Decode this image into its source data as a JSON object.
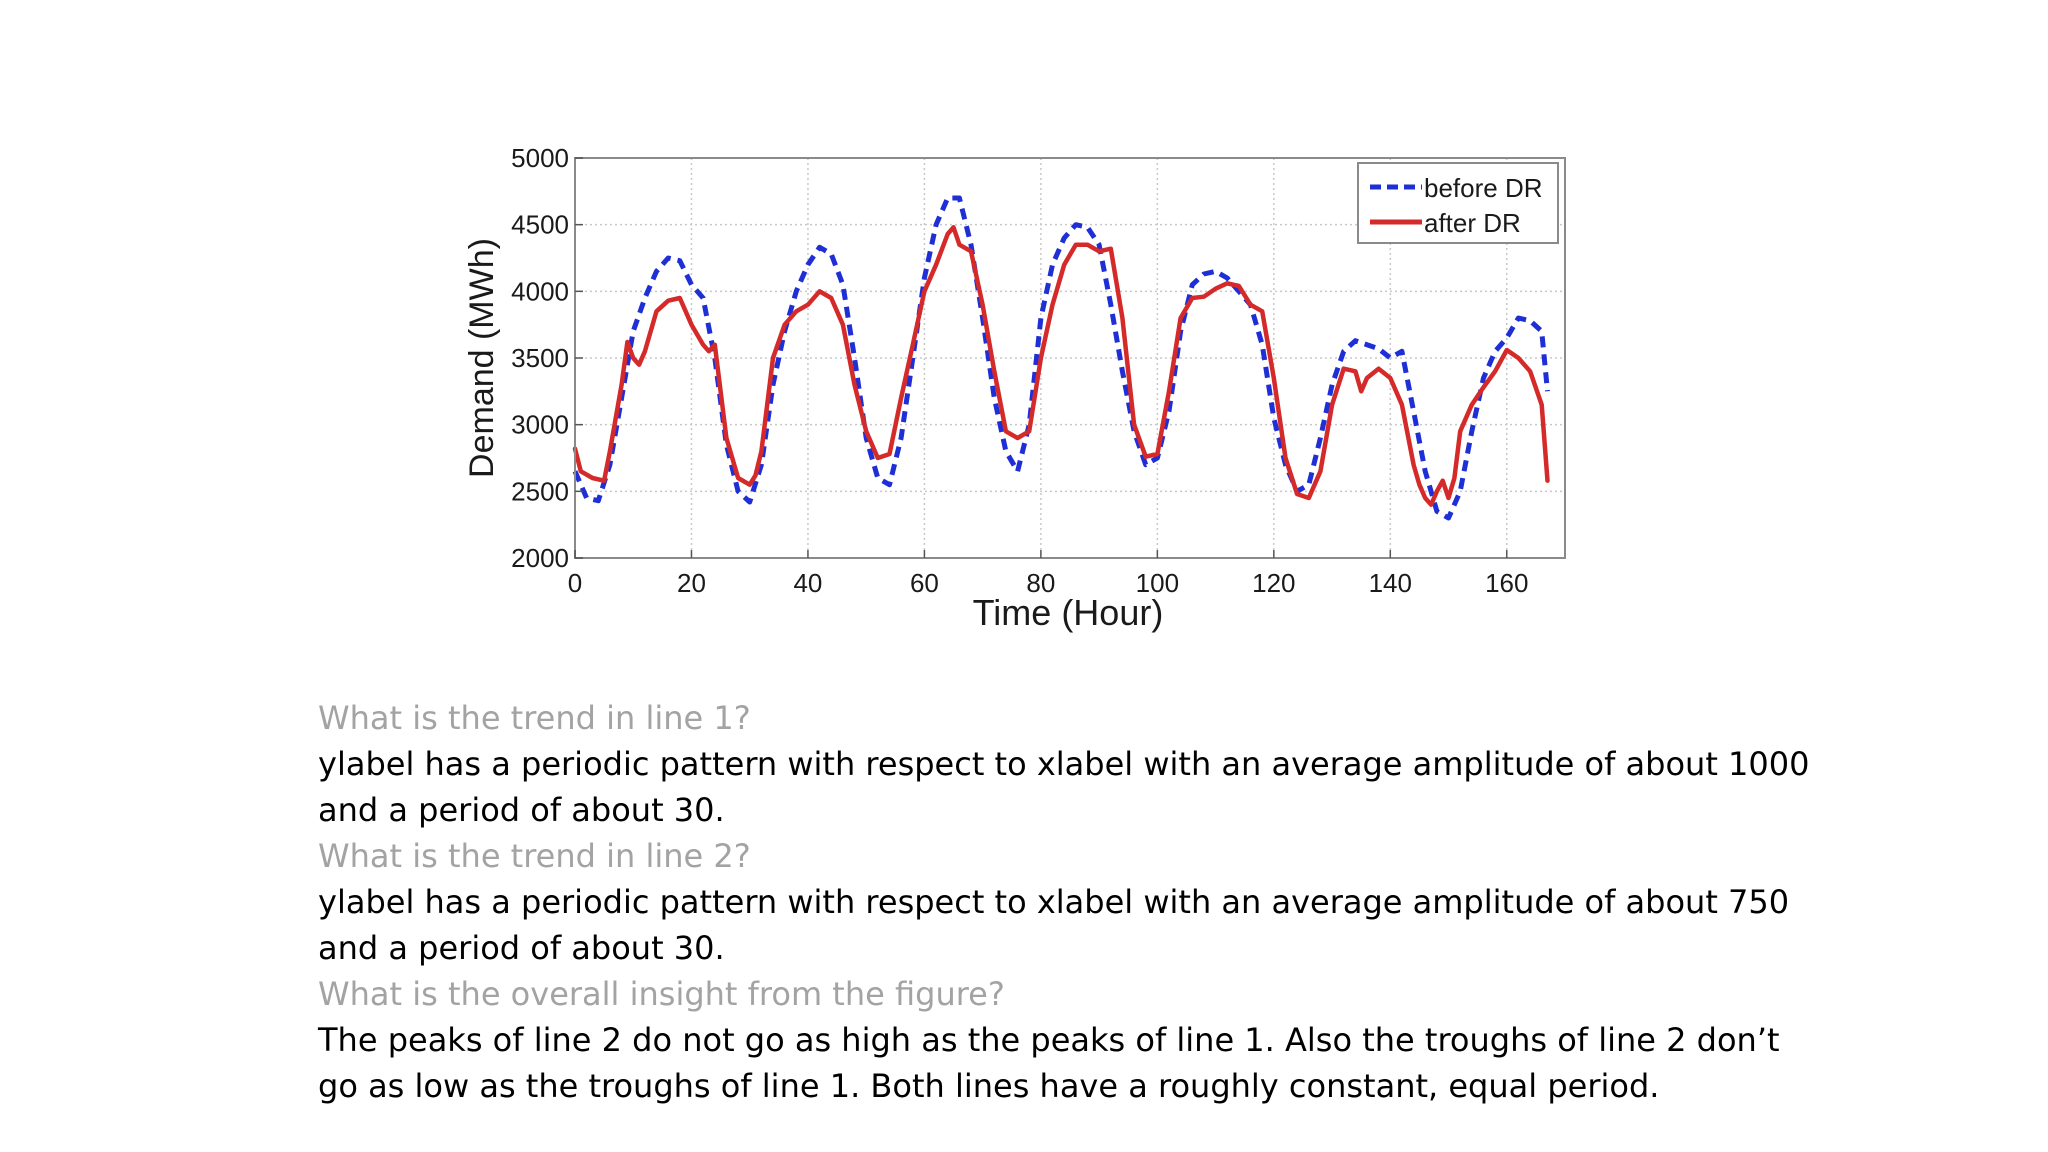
{
  "chart_data": {
    "type": "line",
    "title": "",
    "xlabel": "Time (Hour)",
    "ylabel": "Demand (MWh)",
    "xlim": [
      0,
      170
    ],
    "ylim": [
      2000,
      5000
    ],
    "xticks": [
      0,
      20,
      40,
      60,
      80,
      100,
      120,
      140,
      160
    ],
    "yticks": [
      2000,
      2500,
      3000,
      3500,
      4000,
      4500,
      5000
    ],
    "grid": true,
    "legend_position": "top-right",
    "series": [
      {
        "name": "before DR",
        "color": "#1f2fd6",
        "style": "dashed",
        "x": [
          0,
          2,
          4,
          6,
          8,
          10,
          12,
          14,
          16,
          18,
          20,
          22,
          24,
          26,
          28,
          30,
          32,
          34,
          36,
          38,
          40,
          42,
          44,
          46,
          48,
          50,
          52,
          54,
          56,
          58,
          60,
          62,
          64,
          66,
          68,
          70,
          72,
          74,
          76,
          78,
          80,
          82,
          84,
          86,
          88,
          90,
          92,
          94,
          96,
          98,
          100,
          102,
          104,
          106,
          108,
          110,
          112,
          114,
          116,
          118,
          120,
          122,
          124,
          126,
          128,
          130,
          132,
          134,
          136,
          138,
          140,
          142,
          144,
          146,
          148,
          150,
          152,
          154,
          156,
          158,
          160,
          162,
          164,
          166,
          167
        ],
        "values": [
          2650,
          2450,
          2430,
          2700,
          3200,
          3700,
          3950,
          4150,
          4250,
          4230,
          4050,
          3950,
          3500,
          2850,
          2500,
          2420,
          2700,
          3300,
          3700,
          4000,
          4200,
          4330,
          4280,
          4050,
          3500,
          2900,
          2600,
          2550,
          2900,
          3500,
          4100,
          4500,
          4700,
          4700,
          4350,
          3800,
          3200,
          2800,
          2650,
          3000,
          3800,
          4200,
          4400,
          4500,
          4480,
          4350,
          3900,
          3400,
          2950,
          2700,
          2750,
          3100,
          3700,
          4050,
          4130,
          4150,
          4100,
          4000,
          3900,
          3600,
          3050,
          2700,
          2500,
          2550,
          2900,
          3300,
          3550,
          3630,
          3600,
          3570,
          3500,
          3550,
          3100,
          2650,
          2350,
          2300,
          2500,
          2950,
          3350,
          3550,
          3650,
          3800,
          3780,
          3700,
          3250
        ]
      },
      {
        "name": "after DR",
        "color": "#d42a2a",
        "style": "solid",
        "x": [
          0,
          1,
          3,
          5,
          6,
          8,
          9,
          10,
          11,
          12,
          14,
          16,
          18,
          20,
          22,
          23,
          24,
          26,
          28,
          30,
          31,
          32,
          34,
          36,
          38,
          40,
          42,
          44,
          46,
          48,
          50,
          52,
          54,
          56,
          58,
          60,
          62,
          64,
          65,
          66,
          68,
          70,
          72,
          74,
          76,
          78,
          80,
          82,
          84,
          86,
          88,
          90,
          92,
          94,
          96,
          98,
          100,
          102,
          104,
          106,
          108,
          110,
          112,
          114,
          116,
          118,
          120,
          122,
          124,
          126,
          128,
          130,
          132,
          134,
          135,
          136,
          138,
          140,
          142,
          144,
          145,
          146,
          147,
          148,
          149,
          150,
          151,
          152,
          154,
          156,
          158,
          160,
          162,
          164,
          166,
          167
        ],
        "values": [
          2820,
          2650,
          2600,
          2580,
          2800,
          3300,
          3620,
          3500,
          3450,
          3550,
          3850,
          3930,
          3950,
          3750,
          3600,
          3550,
          3600,
          2900,
          2600,
          2550,
          2620,
          2800,
          3500,
          3750,
          3850,
          3900,
          4000,
          3950,
          3750,
          3300,
          2950,
          2750,
          2780,
          3200,
          3600,
          4000,
          4200,
          4430,
          4480,
          4350,
          4300,
          3900,
          3400,
          2950,
          2900,
          2950,
          3500,
          3900,
          4200,
          4350,
          4350,
          4300,
          4320,
          3800,
          3000,
          2760,
          2780,
          3250,
          3800,
          3950,
          3960,
          4020,
          4060,
          4040,
          3900,
          3850,
          3350,
          2750,
          2480,
          2450,
          2650,
          3150,
          3420,
          3400,
          3250,
          3350,
          3420,
          3350,
          3150,
          2700,
          2550,
          2450,
          2400,
          2500,
          2580,
          2450,
          2600,
          2950,
          3150,
          3280,
          3400,
          3560,
          3500,
          3400,
          3150,
          2580
        ]
      }
    ]
  },
  "qa": [
    {
      "question": "What is the trend in line 1?",
      "answer": "ylabel has a periodic pattern with respect to xlabel with an average amplitude of about 1000 and a period of about 30."
    },
    {
      "question": "What is the trend in line 2?",
      "answer": "ylabel has a periodic pattern with respect to xlabel with an average amplitude of about 750 and a period of about 30."
    },
    {
      "question": "What is the overall insight from the figure?",
      "answer": "The peaks of line 2 do not go as high as the peaks of line 1. Also the troughs of line 2 don’t go as low as the troughs of line 1. Both lines have a roughly constant, equal period."
    }
  ]
}
